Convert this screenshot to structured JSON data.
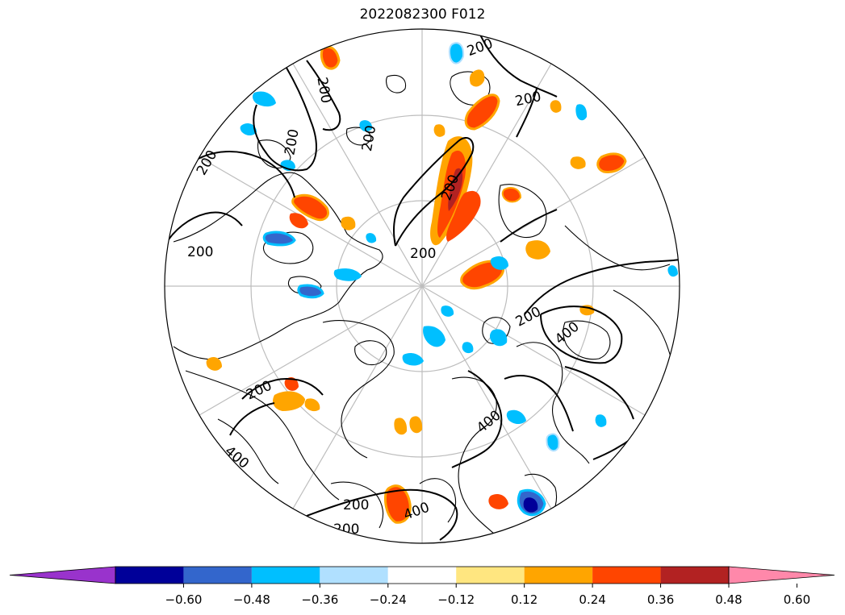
{
  "title": "2022082300 F012",
  "colorbar": {
    "bins": [
      {
        "color": "#9933cc"
      },
      {
        "color": "#000099"
      },
      {
        "color": "#3366cc"
      },
      {
        "color": "#00bfff"
      },
      {
        "color": "#b0e0ff"
      },
      {
        "color": "#ffffff"
      },
      {
        "color": "#ffe680"
      },
      {
        "color": "#ffa500"
      },
      {
        "color": "#ff4500"
      },
      {
        "color": "#b22222"
      },
      {
        "color": "#ff88aa"
      }
    ],
    "ticks": [
      "−0.60",
      "−0.48",
      "−0.36",
      "−0.24",
      "−0.12",
      "0.12",
      "0.24",
      "0.36",
      "0.48",
      "0.60"
    ]
  },
  "contour_labels": [
    "200",
    "200",
    "200",
    "200",
    "200",
    "200",
    "200",
    "200",
    "200",
    "200",
    "200",
    "200",
    "200",
    "200",
    "400",
    "400",
    "400",
    "400"
  ]
}
